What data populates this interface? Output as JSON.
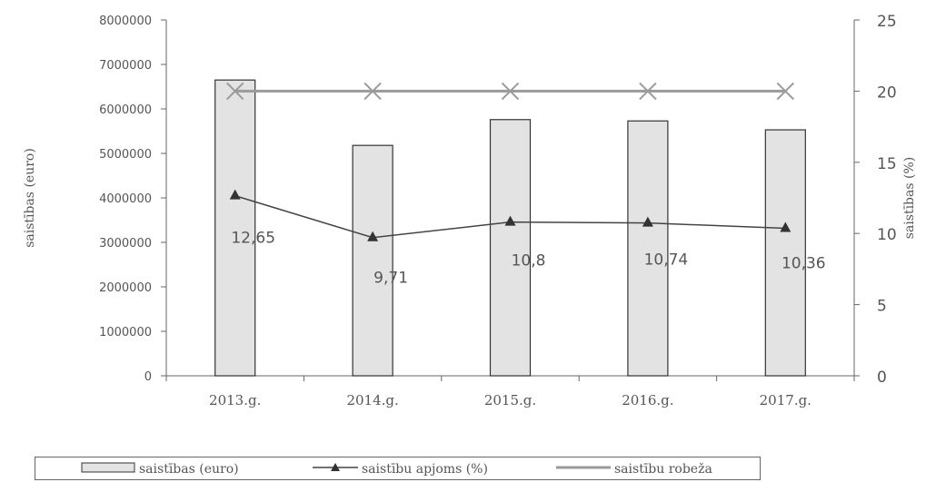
{
  "chart_data": {
    "type": "bar",
    "categories": [
      "2013.g.",
      "2014.g.",
      "2015.g.",
      "2016.g.",
      "2017.g."
    ],
    "series": [
      {
        "name": "saistības (euro)",
        "kind": "bar",
        "axis": "left",
        "values": [
          6650000,
          5180000,
          5760000,
          5730000,
          5530000
        ]
      },
      {
        "name": "saistību apjoms (%)",
        "kind": "line",
        "axis": "right",
        "values": [
          12.65,
          9.71,
          10.8,
          10.74,
          10.36
        ],
        "data_labels": [
          "12,65",
          "9,71",
          "10,8",
          "10,74",
          "10,36"
        ]
      },
      {
        "name": "saistību robeža",
        "kind": "line",
        "axis": "right",
        "values": [
          20,
          20,
          20,
          20,
          20
        ]
      }
    ],
    "ylabel": "saistības (euro)",
    "y2label": "saistības (%)",
    "ylim": [
      0,
      8000000
    ],
    "y2lim": [
      0,
      25
    ],
    "yticks": [
      "0",
      "1000000",
      "2000000",
      "3000000",
      "4000000",
      "5000000",
      "6000000",
      "7000000",
      "8000000"
    ],
    "y2ticks": [
      "0",
      "5",
      "10",
      "15",
      "20",
      "25"
    ],
    "grid": false,
    "legend_position": "bottom",
    "colors": {
      "bar_fill": "#e3e3e3",
      "bar_stroke": "#333333",
      "volume_line": "#444444",
      "limit_line": "#9a9a9a",
      "axis": "#666666",
      "text": "#555555"
    }
  },
  "legend": {
    "items": [
      "saistības (euro)",
      "saistību apjoms (%)",
      "saistību robeža"
    ]
  }
}
